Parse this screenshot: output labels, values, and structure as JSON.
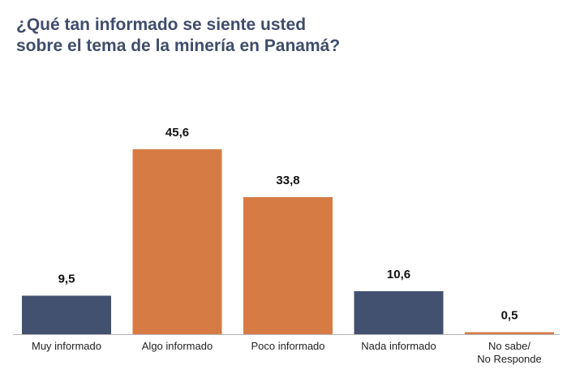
{
  "chart_data": {
    "type": "bar",
    "title_lines": [
      "¿Qué tan informado se siente usted",
      "sobre el tema de la minería en Panamá?"
    ],
    "categories": [
      [
        "Muy informado"
      ],
      [
        "Algo informado"
      ],
      [
        "Poco informado"
      ],
      [
        "Nada informado"
      ],
      [
        "No sabe/",
        "No Responde"
      ]
    ],
    "values": [
      9.5,
      45.6,
      33.8,
      10.6,
      0.5
    ],
    "value_labels": [
      "9,5",
      "45,6",
      "33,8",
      "10,6",
      "0,5"
    ],
    "bar_colors": [
      "#435170",
      "#d67b44",
      "#d67b44",
      "#435170",
      "#d67b44"
    ],
    "xlabel": "",
    "ylabel": "",
    "ylim": [
      0,
      50
    ],
    "grid": false,
    "legend": "none"
  }
}
